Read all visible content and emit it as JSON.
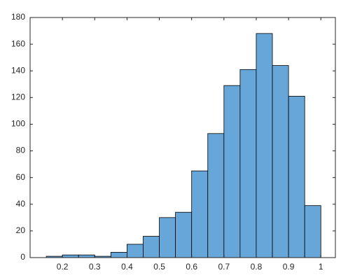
{
  "chart_data": {
    "type": "histogram",
    "bins": [
      0.15,
      0.2,
      0.25,
      0.3,
      0.35,
      0.4,
      0.45,
      0.5,
      0.55,
      0.6,
      0.65,
      0.7,
      0.75,
      0.8,
      0.85,
      0.9,
      0.95,
      1
    ],
    "values": [
      1,
      2,
      2,
      1,
      4,
      10,
      16,
      30,
      34,
      65,
      93,
      129,
      141,
      168,
      144,
      121,
      39
    ],
    "color": "#66a6d8",
    "edgecolor": "#000000",
    "xlim": [
      0.1,
      1.045
    ],
    "xticks": [
      0.2,
      0.3,
      0.4,
      0.5,
      0.6,
      0.7,
      0.8,
      0.9,
      1
    ],
    "ylim": [
      0,
      180
    ],
    "yticks": [
      0,
      20,
      40,
      60,
      80,
      100,
      120,
      140,
      160,
      180
    ],
    "grid": false,
    "box": true
  }
}
